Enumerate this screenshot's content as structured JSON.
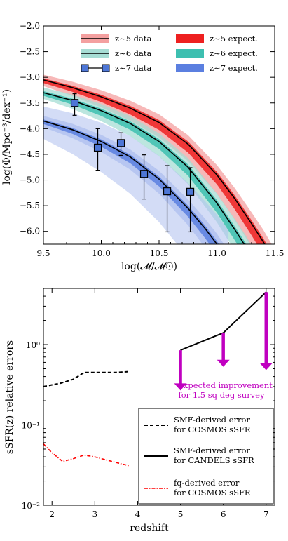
{
  "chart_data": [
    {
      "type": "line",
      "panel": "top",
      "xlabel": "log(𝓜/𝓜☉)",
      "ylabel": "log(Φ/Mpc⁻³/dex⁻¹)",
      "xlim": [
        9.5,
        11.5
      ],
      "ylim": [
        -6.25,
        -2.0
      ],
      "xticks": [
        "9.5",
        "10.0",
        "10.5",
        "11.0",
        "11.5"
      ],
      "yticks": [
        "-2.0",
        "-2.5",
        "-3.0",
        "-3.5",
        "-4.0",
        "-4.5",
        "-5.0",
        "-5.5",
        "-6.0"
      ],
      "grid": false,
      "legend": "top-right",
      "legend_entries": [
        "z∼5 data",
        "z∼6 data",
        "z∼7 data",
        "z∼5 expect.",
        "z∼6 expect.",
        "z∼7 expect."
      ],
      "colors": {
        "z5_band": "#f4a0a0",
        "z5_expect": "#ee2020",
        "z6_band": "#a6ddd4",
        "z6_expect": "#3dbfb0",
        "z7_band": "#aebfef",
        "z7_expect": "#5b7fe0",
        "marker": "#4d76d6"
      },
      "series": [
        {
          "name": "z∼5 data",
          "x": [
            9.5,
            9.75,
            10.0,
            10.25,
            10.5,
            10.75,
            11.0,
            11.15,
            11.3,
            11.4,
            11.5
          ],
          "y": [
            -3.05,
            -3.2,
            -3.38,
            -3.6,
            -3.88,
            -4.3,
            -4.9,
            -5.35,
            -5.85,
            -6.2,
            -6.6
          ]
        },
        {
          "name": "z∼6 data",
          "x": [
            9.5,
            9.75,
            10.0,
            10.25,
            10.5,
            10.75,
            11.0,
            11.15,
            11.25,
            11.35
          ],
          "y": [
            -3.3,
            -3.45,
            -3.65,
            -3.9,
            -4.25,
            -4.75,
            -5.45,
            -5.95,
            -6.3,
            -6.7
          ]
        },
        {
          "name": "z∼7 data",
          "x": [
            9.5,
            9.75,
            10.0,
            10.25,
            10.5,
            10.75,
            10.9,
            11.0,
            11.1
          ],
          "y": [
            -3.85,
            -4.02,
            -4.25,
            -4.55,
            -4.98,
            -5.55,
            -5.95,
            -6.25,
            -6.6
          ]
        }
      ],
      "points": {
        "name": "z∼7 data",
        "x": [
          9.77,
          9.97,
          10.17,
          10.37,
          10.57,
          10.77
        ],
        "y": [
          -3.5,
          -4.37,
          -4.28,
          -4.88,
          -5.22,
          -5.23
        ],
        "err_low": [
          0.24,
          0.44,
          0.24,
          0.49,
          0.79,
          0.78
        ],
        "err_high": [
          0.18,
          0.37,
          0.2,
          0.37,
          0.5,
          0.47
        ]
      }
    },
    {
      "type": "line",
      "panel": "bottom",
      "xlabel": "redshift",
      "ylabel": "sSFR(z) relative errors",
      "xlim": [
        1.8,
        7.2
      ],
      "yscale": "log",
      "ylim": [
        0.01,
        5.0
      ],
      "xticks": [
        "2",
        "3",
        "4",
        "5",
        "6",
        "7"
      ],
      "yticks": [
        "10⁻²",
        "10⁻¹",
        "10⁰"
      ],
      "grid": false,
      "legend": "lower-right",
      "series": [
        {
          "name": "SMF-derived error for COSMOS sSFR",
          "x": [
            1.8,
            2.2,
            2.5,
            2.75,
            3.0,
            3.5,
            3.8
          ],
          "y": [
            0.3,
            0.33,
            0.37,
            0.45,
            0.45,
            0.45,
            0.46
          ]
        },
        {
          "name": "SMF-derived error for CANDELS sSFR",
          "x": [
            5,
            6,
            7
          ],
          "y": [
            0.85,
            1.4,
            4.5
          ]
        },
        {
          "name": "fq-derived error for COSMOS sSFR",
          "x": [
            1.8,
            2.0,
            2.25,
            2.5,
            2.75,
            3.0,
            3.5,
            3.8
          ],
          "y": [
            0.058,
            0.045,
            0.035,
            0.038,
            0.042,
            0.04,
            0.034,
            0.031
          ]
        }
      ],
      "arrows": {
        "x": [
          5,
          6,
          7
        ],
        "from": [
          0.85,
          1.4,
          4.5
        ],
        "to": [
          0.28,
          0.55,
          0.5
        ],
        "color": "#c000c0"
      },
      "annotation": {
        "line1": "expected improvement",
        "line2": "for 1.5 sq deg survey",
        "color": "#c000c0"
      },
      "legend_entries": [
        {
          "line1": "SMF-derived error",
          "line2": "for COSMOS sSFR"
        },
        {
          "line1": "SMF-derived error",
          "line2": "for CANDELS sSFR"
        },
        {
          "line1": "fq-derived error",
          "line2": "for COSMOS sSFR"
        }
      ]
    }
  ]
}
